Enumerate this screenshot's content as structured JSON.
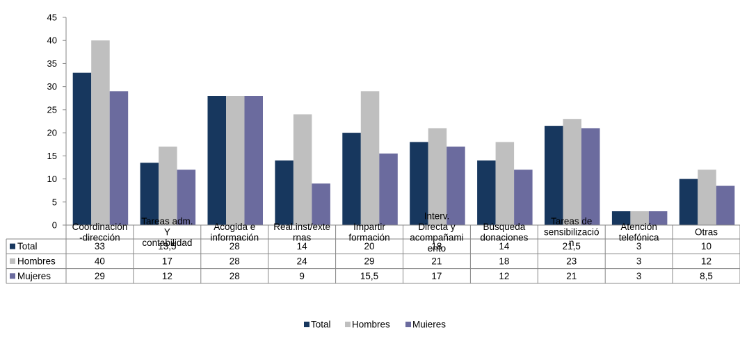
{
  "chart_data": {
    "type": "bar",
    "title": "",
    "xlabel": "",
    "ylabel": "",
    "ylim": [
      0,
      45
    ],
    "yticks": [
      0,
      5,
      10,
      15,
      20,
      25,
      30,
      35,
      40,
      45
    ],
    "grid": false,
    "legend_position": "bottom",
    "categories": [
      "Coordinación-dirección",
      "Tareas adm. Y contabilidad",
      "Acogida e información",
      "Real.inst/externas",
      "Impartir formación",
      "Interv. Directa y acompañamiento",
      "Búsqueda donaciones",
      "Tareas de sensibilización",
      "Atención telefónica",
      "Otras"
    ],
    "category_label_lines": [
      [
        "Coordinación",
        "-dirección"
      ],
      [
        "Tareas adm.",
        "Y",
        "contabilidad"
      ],
      [
        "Acogida e",
        "información"
      ],
      [
        "Real.inst/exte",
        "rnas"
      ],
      [
        "Impartir",
        "formación"
      ],
      [
        "Interv.",
        "Directa y",
        "acompañami",
        "ento"
      ],
      [
        "Búsqueda",
        "donaciones"
      ],
      [
        "Tareas de",
        "sensibilizació",
        "n"
      ],
      [
        "Atención",
        "telefónica"
      ],
      [
        "Otras"
      ]
    ],
    "series": [
      {
        "name": "Total",
        "color": "#17375e",
        "values": [
          33,
          13.5,
          28,
          14,
          20,
          18,
          14,
          21.5,
          3,
          10
        ],
        "table_values": [
          "33",
          "13,5",
          "28",
          "14",
          "20",
          "18",
          "14",
          "21,5",
          "3",
          "10"
        ]
      },
      {
        "name": "Hombres",
        "color": "#bfbfbf",
        "values": [
          40,
          17,
          28,
          24,
          29,
          21,
          18,
          23,
          3,
          12
        ],
        "table_values": [
          "40",
          "17",
          "28",
          "24",
          "29",
          "21",
          "18",
          "23",
          "3",
          "12"
        ]
      },
      {
        "name": "Mujeres",
        "color": "#6b6b9e",
        "values": [
          29,
          12,
          28,
          9,
          15.5,
          17,
          12,
          21,
          3,
          8.5
        ],
        "table_values": [
          "29",
          "12",
          "28",
          "9",
          "15,5",
          "17",
          "12",
          "21",
          "3",
          "8,5"
        ]
      }
    ],
    "legend_labels": [
      "Total",
      "Hombres",
      "Muieres"
    ]
  }
}
